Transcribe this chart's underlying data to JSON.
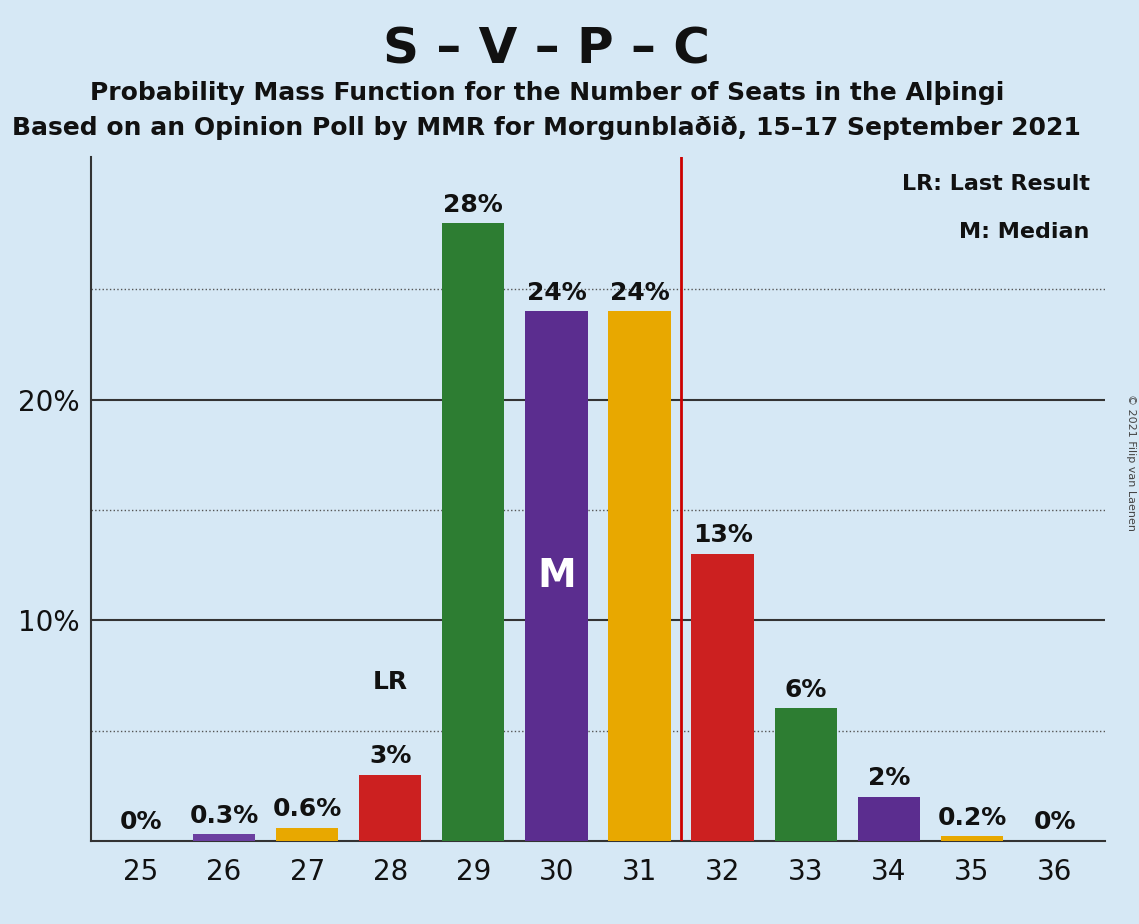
{
  "title": "S – V – P – C",
  "subtitle1": "Probability Mass Function for the Number of Seats in the Alþingi",
  "subtitle2": "Based on an Opinion Poll by MMR for Morgunblaðið, 15–17 September 2021",
  "copyright": "© 2021 Filip van Laenen",
  "seats": [
    25,
    26,
    27,
    28,
    29,
    30,
    31,
    32,
    33,
    34,
    35,
    36
  ],
  "values": [
    0.0,
    0.3,
    0.6,
    3.0,
    28.0,
    24.0,
    24.0,
    13.0,
    6.0,
    2.0,
    0.2,
    0.0
  ],
  "bar_colors": [
    "#e0a800",
    "#6b3fa0",
    "#e8a800",
    "#cc2020",
    "#2d7d32",
    "#5b2d8f",
    "#e8a800",
    "#cc2020",
    "#2d7d32",
    "#5b2d8f",
    "#e8a800",
    "#e0a800"
  ],
  "bar_labels": [
    "0%",
    "0.3%",
    "0.6%",
    "3%",
    "28%",
    "24%",
    "24%",
    "13%",
    "6%",
    "2%",
    "0.2%",
    "0%"
  ],
  "median_seat_index": 5,
  "lr_seat_index": 3,
  "vline_x": 31.5,
  "background_color": "#d6e8f5",
  "ylim": [
    0,
    31
  ],
  "dotted_yticks": [
    5,
    15,
    25
  ],
  "solid_yticks": [
    10,
    20
  ],
  "label_fontsize": 16,
  "bar_label_fontsize": 18,
  "title_fontsize": 36,
  "subtitle_fontsize": 18,
  "axis_label_fontsize": 20,
  "m_label_fontsize": 28,
  "lr_legend": "LR: Last Result",
  "m_legend": "M: Median"
}
